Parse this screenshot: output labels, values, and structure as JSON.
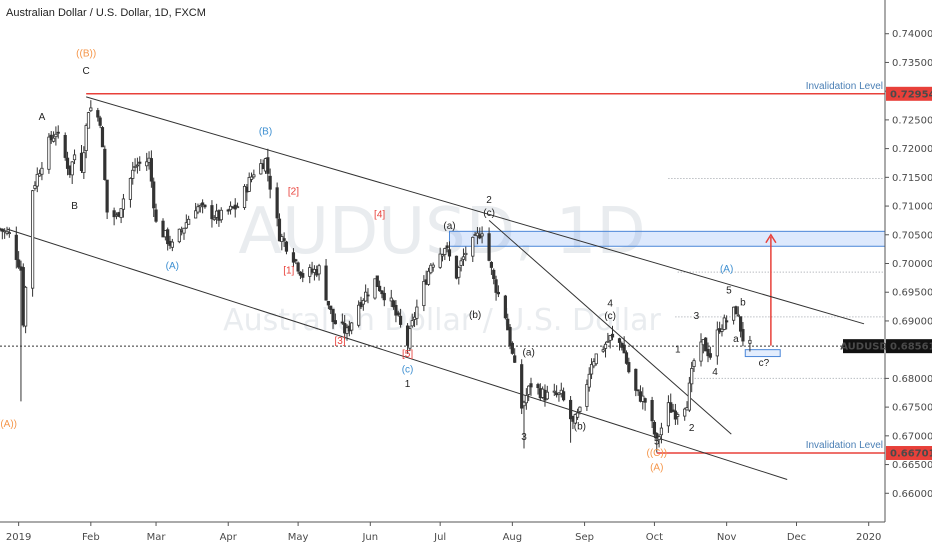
{
  "chart_data": {
    "type": "candlestick",
    "title": "Australian Dollar / U.S. Dollar, 1D, FXCM",
    "watermark": {
      "symbol": "AUDUSD, 1D",
      "name": "Australian Dollar / U.S. Dollar"
    },
    "y_range": [
      0.655,
      0.745
    ],
    "x_range": [
      "2018-12-24",
      "2020-01-08"
    ],
    "y_ticks": [
      "0.74000",
      "0.73500",
      "0.73000",
      "0.72500",
      "0.72000",
      "0.71500",
      "0.71000",
      "0.70500",
      "0.70000",
      "0.69500",
      "0.69000",
      "0.68500",
      "0.68000",
      "0.67500",
      "0.67000",
      "0.66500",
      "0.66000"
    ],
    "x_ticks": [
      {
        "date": "2019-01-01",
        "label": "2019"
      },
      {
        "date": "2019-02-01",
        "label": "Feb"
      },
      {
        "date": "2019-03-01",
        "label": "Mar"
      },
      {
        "date": "2019-04-01",
        "label": "Apr"
      },
      {
        "date": "2019-05-01",
        "label": "May"
      },
      {
        "date": "2019-06-01",
        "label": "Jun"
      },
      {
        "date": "2019-07-01",
        "label": "Jul"
      },
      {
        "date": "2019-08-01",
        "label": "Aug"
      },
      {
        "date": "2019-09-01",
        "label": "Sep"
      },
      {
        "date": "2019-10-01",
        "label": "Oct"
      },
      {
        "date": "2019-11-01",
        "label": "Nov"
      },
      {
        "date": "2019-12-01",
        "label": "Dec"
      },
      {
        "date": "2020-01-01",
        "label": "2020"
      }
    ],
    "price_path": [
      [
        "2018-12-24",
        0.706
      ],
      [
        "2018-12-28",
        0.705
      ],
      [
        "2019-01-02",
        0.699
      ],
      [
        "2019-01-03",
        0.69
      ],
      [
        "2019-01-07",
        0.713
      ],
      [
        "2019-01-14",
        0.721
      ],
      [
        "2019-01-17",
        0.723
      ],
      [
        "2019-01-23",
        0.716
      ],
      [
        "2019-01-25",
        0.719
      ],
      [
        "2019-01-28",
        0.717
      ],
      [
        "2019-01-31",
        0.727
      ],
      [
        "2019-02-01",
        0.727
      ],
      [
        "2019-02-05",
        0.725
      ],
      [
        "2019-02-08",
        0.709
      ],
      [
        "2019-02-12",
        0.708
      ],
      [
        "2019-02-20",
        0.717
      ],
      [
        "2019-02-26",
        0.718
      ],
      [
        "2019-03-01",
        0.707
      ],
      [
        "2019-03-08",
        0.703
      ],
      [
        "2019-03-18",
        0.71
      ],
      [
        "2019-03-28",
        0.708
      ],
      [
        "2019-04-05",
        0.71
      ],
      [
        "2019-04-12",
        0.716
      ],
      [
        "2019-04-17",
        0.718
      ],
      [
        "2019-04-23",
        0.705
      ],
      [
        "2019-04-28",
        0.702
      ],
      [
        "2019-05-03",
        0.698
      ],
      [
        "2019-05-10",
        0.699
      ],
      [
        "2019-05-16",
        0.69
      ],
      [
        "2019-05-22",
        0.688
      ],
      [
        "2019-05-27",
        0.693
      ],
      [
        "2019-06-03",
        0.697
      ],
      [
        "2019-06-10",
        0.693
      ],
      [
        "2019-06-17",
        0.686
      ],
      [
        "2019-06-20",
        0.691
      ],
      [
        "2019-06-27",
        0.7
      ],
      [
        "2019-07-03",
        0.703
      ],
      [
        "2019-07-08",
        0.698
      ],
      [
        "2019-07-12",
        0.702
      ],
      [
        "2019-07-16",
        0.704
      ],
      [
        "2019-07-19",
        0.706
      ],
      [
        "2019-07-24",
        0.697
      ],
      [
        "2019-07-29",
        0.691
      ],
      [
        "2019-08-01",
        0.684
      ],
      [
        "2019-08-05",
        0.675
      ],
      [
        "2019-08-09",
        0.679
      ],
      [
        "2019-08-15",
        0.677
      ],
      [
        "2019-08-22",
        0.677
      ],
      [
        "2019-08-27",
        0.672
      ],
      [
        "2019-08-30",
        0.674
      ],
      [
        "2019-09-04",
        0.683
      ],
      [
        "2019-09-08",
        0.685
      ],
      [
        "2019-09-12",
        0.687
      ],
      [
        "2019-09-17",
        0.686
      ],
      [
        "2019-09-22",
        0.678
      ],
      [
        "2019-09-27",
        0.676
      ],
      [
        "2019-10-02",
        0.669
      ],
      [
        "2019-10-07",
        0.675
      ],
      [
        "2019-10-10",
        0.674
      ],
      [
        "2019-10-15",
        0.676
      ],
      [
        "2019-10-18",
        0.683
      ],
      [
        "2019-10-22",
        0.686
      ],
      [
        "2019-10-25",
        0.684
      ],
      [
        "2019-10-29",
        0.689
      ],
      [
        "2019-11-01",
        0.69
      ],
      [
        "2019-11-05",
        0.692
      ],
      [
        "2019-11-08",
        0.687
      ],
      [
        "2019-11-11",
        0.6856
      ]
    ],
    "annotations": {
      "wave_labels": [
        {
          "text": "((A))",
          "date": "2018-12-27",
          "price": 0.6715,
          "color": "#f5964a"
        },
        {
          "text": "((B))",
          "date": "2019-01-30",
          "price": 0.736,
          "color": "#f5964a"
        },
        {
          "text": "C",
          "date": "2019-01-30",
          "price": 0.733,
          "color": "#222222"
        },
        {
          "text": "A",
          "date": "2019-01-11",
          "price": 0.725,
          "color": "#222222"
        },
        {
          "text": "B",
          "date": "2019-01-25",
          "price": 0.7095,
          "color": "#222222"
        },
        {
          "text": "(A)",
          "date": "2019-03-08",
          "price": 0.699,
          "color": "#3d8fd1"
        },
        {
          "text": "(B)",
          "date": "2019-04-17",
          "price": 0.7225,
          "color": "#3d8fd1"
        },
        {
          "text": "[2]",
          "date": "2019-04-29",
          "price": 0.712,
          "color": "#e8403a"
        },
        {
          "text": "[1]",
          "date": "2019-04-27",
          "price": 0.6983,
          "color": "#e8403a"
        },
        {
          "text": "[4]",
          "date": "2019-06-05",
          "price": 0.708,
          "color": "#e8403a"
        },
        {
          "text": "[3]",
          "date": "2019-05-19",
          "price": 0.686,
          "color": "#e8403a"
        },
        {
          "text": "[5]",
          "date": "2019-06-17",
          "price": 0.6837,
          "color": "#e8403a"
        },
        {
          "text": "(c)",
          "date": "2019-06-17",
          "price": 0.681,
          "color": "#3d8fd1"
        },
        {
          "text": "1",
          "date": "2019-06-17",
          "price": 0.6785,
          "color": "#222222"
        },
        {
          "text": "(a)",
          "date": "2019-07-05",
          "price": 0.706,
          "color": "#222222"
        },
        {
          "text": "2",
          "date": "2019-07-22",
          "price": 0.7105,
          "color": "#222222"
        },
        {
          "text": "(c)",
          "date": "2019-07-22",
          "price": 0.7083,
          "color": "#222222"
        },
        {
          "text": "(b)",
          "date": "2019-07-16",
          "price": 0.6905,
          "color": "#222222"
        },
        {
          "text": "(a)",
          "date": "2019-08-08",
          "price": 0.684,
          "color": "#222222"
        },
        {
          "text": "3",
          "date": "2019-08-06",
          "price": 0.6693,
          "color": "#222222"
        },
        {
          "text": "(b)",
          "date": "2019-08-30",
          "price": 0.6711,
          "color": "#222222"
        },
        {
          "text": "4",
          "date": "2019-09-12",
          "price": 0.6925,
          "color": "#222222"
        },
        {
          "text": "(c)",
          "date": "2019-09-12",
          "price": 0.6903,
          "color": "#222222"
        },
        {
          "text": "5",
          "date": "2019-10-02",
          "price": 0.6685,
          "color": "#222222"
        },
        {
          "text": "((C))",
          "date": "2019-10-02",
          "price": 0.6665,
          "color": "#f5964a"
        },
        {
          "text": "(A)",
          "date": "2019-10-02",
          "price": 0.664,
          "color": "#f5964a"
        },
        {
          "text": "1",
          "date": "2019-10-11",
          "price": 0.6845,
          "color": "#222222"
        },
        {
          "text": "2",
          "date": "2019-10-17",
          "price": 0.6708,
          "color": "#222222"
        },
        {
          "text": "3",
          "date": "2019-10-19",
          "price": 0.6903,
          "color": "#222222"
        },
        {
          "text": "4",
          "date": "2019-10-27",
          "price": 0.6806,
          "color": "#222222"
        },
        {
          "text": "(A)",
          "date": "2019-11-01",
          "price": 0.6985,
          "color": "#3d8fd1"
        },
        {
          "text": "5",
          "date": "2019-11-02",
          "price": 0.6948,
          "color": "#222222"
        },
        {
          "text": "b",
          "date": "2019-11-08",
          "price": 0.6927,
          "color": "#222222"
        },
        {
          "text": "a",
          "date": "2019-11-05",
          "price": 0.6863,
          "color": "#222222"
        },
        {
          "text": "c?",
          "date": "2019-11-17",
          "price": 0.6822,
          "color": "#222222"
        }
      ],
      "invalidation_levels": [
        {
          "label": "Invalidation Level",
          "price_label": "0.72954",
          "price": 0.72954,
          "start": "2019-01-30",
          "color": "#e8403a"
        },
        {
          "label": "Invalidation Level",
          "price_label": "0.66701",
          "price": 0.66701,
          "start": "2019-10-02",
          "color": "#e8403a"
        }
      ],
      "current_price": {
        "symbol": "AUDUSD",
        "price_label": "0.68561",
        "price": 0.68561
      },
      "target_zone": {
        "from": "2019-07-05",
        "to": "2020-01-08",
        "low": 0.703,
        "high": 0.7056
      },
      "support_box": {
        "from": "2019-11-09",
        "to": "2019-11-24",
        "low": 0.6838,
        "high": 0.685
      },
      "target_arrow": {
        "date": "2019-11-20",
        "from_price": 0.6857,
        "to_price": 0.705
      },
      "dotted_levels": [
        {
          "from": "2019-10-07",
          "price": 0.7148
        },
        {
          "from": "2019-10-11",
          "price": 0.6985
        },
        {
          "from": "2019-10-10",
          "price": 0.6907
        },
        {
          "from": "2019-10-17",
          "price": 0.68
        }
      ],
      "trendlines": [
        {
          "from": [
            "2019-01-30",
            0.729
          ],
          "to": [
            "2019-12-30",
            0.6895
          ]
        },
        {
          "from": [
            "2018-12-27",
            0.706
          ],
          "to": [
            "2019-11-27",
            0.6624
          ]
        },
        {
          "from": [
            "2019-07-22",
            0.7075
          ],
          "to": [
            "2019-11-03",
            0.6703
          ]
        }
      ]
    }
  }
}
